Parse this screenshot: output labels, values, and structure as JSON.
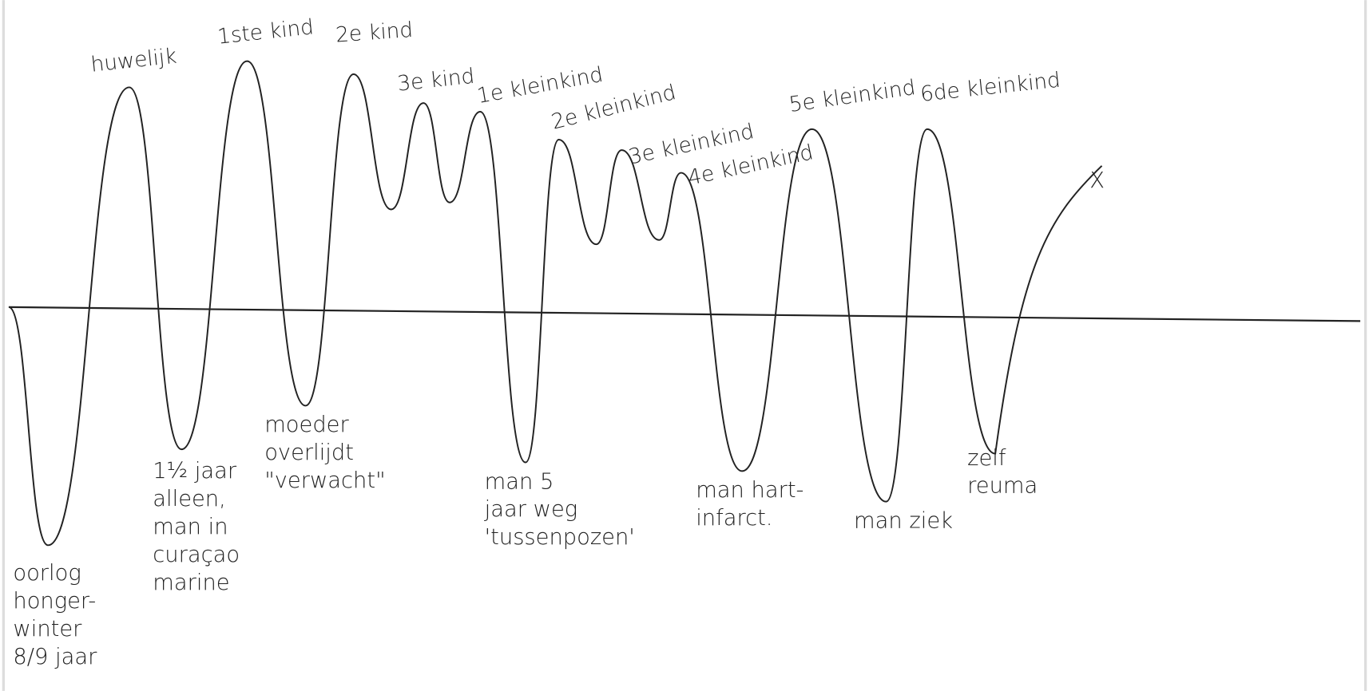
{
  "peaks": [
    {
      "label": "huwelijk"
    },
    {
      "label": "1ste kind"
    },
    {
      "label": "2e kind"
    },
    {
      "label": "3e kind"
    },
    {
      "label": "1e kleinkind"
    },
    {
      "label": "2e kleinkind"
    },
    {
      "label": "3e kleinkind"
    },
    {
      "label": "4e kleinkind"
    },
    {
      "label": "5e kleinkind"
    },
    {
      "label": "6de kleinkind"
    }
  ],
  "troughs": [
    {
      "lines": [
        "oorlog",
        "honger-",
        "winter",
        "8/9 jaar"
      ]
    },
    {
      "lines": [
        "1½ jaar",
        "alleen,",
        "man in",
        "curaçao",
        "marine"
      ]
    },
    {
      "lines": [
        "moeder",
        "overlijdt",
        "\"verwacht\""
      ]
    },
    {
      "lines": [
        "man 5",
        "jaar weg",
        "'tussenpozen'"
      ]
    },
    {
      "lines": [
        "man hart-",
        "infarct."
      ]
    },
    {
      "lines": [
        "man ziek"
      ]
    },
    {
      "lines": [
        "zelf",
        "reuma"
      ]
    }
  ],
  "end_marker": "X"
}
